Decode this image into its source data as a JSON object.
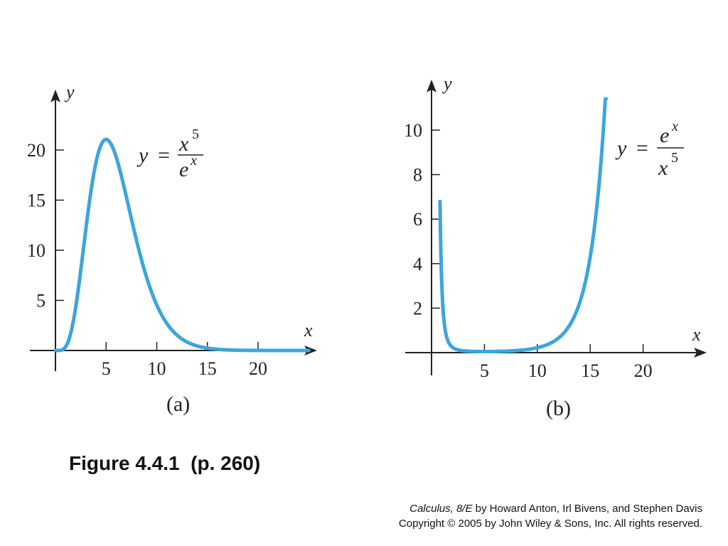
{
  "chart_data": [
    {
      "type": "line",
      "panel_label": "(a)",
      "equation": {
        "lhs": "y",
        "numerator": "x",
        "numerator_exp": "5",
        "denominator": "e",
        "denominator_exp": "x"
      },
      "xlabel": "x",
      "ylabel": "y",
      "xlim": [
        0,
        25
      ],
      "ylim": [
        0,
        25
      ],
      "xticks": [
        5,
        10,
        15,
        20
      ],
      "yticks": [
        5,
        10,
        15,
        20
      ],
      "series": [
        {
          "function": "x^5/e^x",
          "x_min": 0,
          "x_max": 25,
          "color": "#3da5dc"
        }
      ],
      "grid": false
    },
    {
      "type": "line",
      "panel_label": "(b)",
      "equation": {
        "lhs": "y",
        "numerator": "e",
        "numerator_exp": "x",
        "denominator": "x",
        "denominator_exp": "5"
      },
      "xlabel": "x",
      "ylabel": "y",
      "xlim": [
        0,
        26
      ],
      "ylim": [
        0,
        12
      ],
      "xticks": [
        5,
        10,
        15,
        20
      ],
      "yticks": [
        2,
        4,
        6,
        8,
        10
      ],
      "series": [
        {
          "function": "e^x/x^5",
          "x_min": 0.8,
          "x_max": 16.5,
          "color": "#3da5dc"
        }
      ],
      "grid": false
    }
  ],
  "caption": "Figure 4.4.1  (p. 260)",
  "credit": {
    "book_title": "Calculus, 8/E",
    "authors": " by Howard Anton, Irl Bivens, and Stephen Davis",
    "copyright": "Copyright © 2005 by John Wiley & Sons, Inc.  All rights reserved."
  }
}
